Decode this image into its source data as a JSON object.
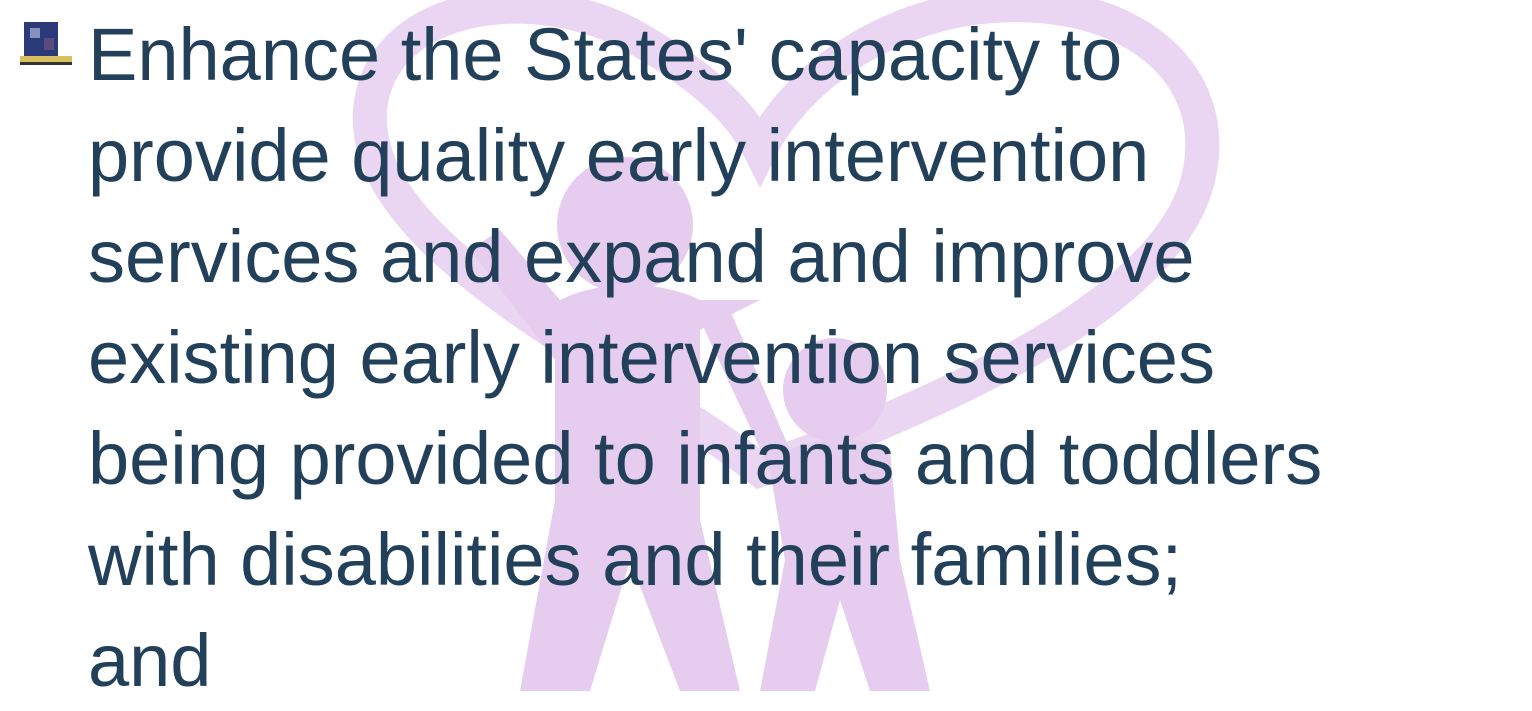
{
  "bullet": {
    "lines": [
      "Enhance the States' capacity to",
      "provide quality early intervention",
      "services and expand and improve",
      "existing early intervention services",
      "being provided to infants and toddlers",
      "with disabilities and their families;",
      "and"
    ]
  }
}
